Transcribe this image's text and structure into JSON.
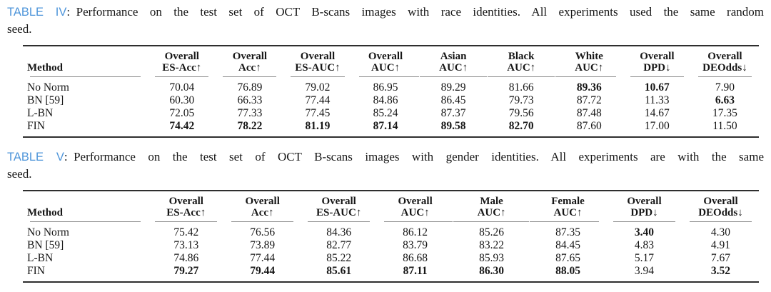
{
  "colors": {
    "caption_label_blue": "#4e95da",
    "text": "#161616",
    "heavy_rule": "#2e2e2e",
    "light_rule": "#8e8e8e",
    "background": "#ffffff"
  },
  "captions": [
    {
      "label": "TABLE IV",
      "colon": ":",
      "body": "Performance on the test set of OCT B-scans images with race identities. All experiments used the same random",
      "line2": "seed."
    },
    {
      "label": "TABLE V",
      "colon": ":",
      "body": "Performance on the test set of OCT B-scans images with gender identities. All experiments are with the same",
      "line2": "seed."
    }
  ],
  "tables": [
    {
      "name": "race-results",
      "method_col_width": "17%",
      "columns": [
        {
          "top": "",
          "bottom": "Method",
          "rule": "solo"
        },
        {
          "top": "Overall",
          "bottom": "ES-Acc↑",
          "rule": "solo"
        },
        {
          "top": "Overall",
          "bottom": "Acc↑",
          "rule": "solo"
        },
        {
          "top": "Overall",
          "bottom": "ES-AUC↑",
          "rule": "solo"
        },
        {
          "top": "Overall",
          "bottom": "AUC↑",
          "rule": "start"
        },
        {
          "top": "Asian",
          "bottom": "AUC↑",
          "rule": "mid"
        },
        {
          "top": "Black",
          "bottom": "AUC↑",
          "rule": "mid"
        },
        {
          "top": "White",
          "bottom": "AUC↑",
          "rule": "end"
        },
        {
          "top": "Overall",
          "bottom": "DPD↓",
          "rule": "solo"
        },
        {
          "top": "Overall",
          "bottom": "DEOdds↓",
          "rule": "solo"
        }
      ],
      "rows": [
        {
          "cells": [
            "No Norm",
            "70.04",
            "76.89",
            "79.02",
            "86.95",
            "89.29",
            "81.66",
            "89.36",
            "10.67",
            "7.90"
          ],
          "bold": [
            0,
            0,
            0,
            0,
            0,
            0,
            0,
            1,
            1,
            0
          ]
        },
        {
          "cells": [
            "BN [59]",
            "60.30",
            "66.33",
            "77.44",
            "84.86",
            "86.45",
            "79.73",
            "87.72",
            "11.33",
            "6.63"
          ],
          "bold": [
            0,
            0,
            0,
            0,
            0,
            0,
            0,
            0,
            0,
            1
          ]
        },
        {
          "cells": [
            "L-BN",
            "72.05",
            "77.33",
            "77.45",
            "85.24",
            "87.37",
            "79.56",
            "87.48",
            "14.67",
            "17.35"
          ],
          "bold": [
            0,
            0,
            0,
            0,
            0,
            0,
            0,
            0,
            0,
            0
          ]
        },
        {
          "cells": [
            "FIN",
            "74.42",
            "78.22",
            "81.19",
            "87.14",
            "89.58",
            "82.70",
            "87.60",
            "17.00",
            "11.50"
          ],
          "bold": [
            0,
            1,
            1,
            1,
            1,
            1,
            1,
            0,
            0,
            0
          ]
        }
      ]
    },
    {
      "name": "gender-results",
      "method_col_width": "17%",
      "columns": [
        {
          "top": "",
          "bottom": "Method",
          "rule": "solo"
        },
        {
          "top": "Overall",
          "bottom": "ES-Acc↑",
          "rule": "solo"
        },
        {
          "top": "Overall",
          "bottom": "Acc↑",
          "rule": "solo"
        },
        {
          "top": "Overall",
          "bottom": "ES-AUC↑",
          "rule": "solo"
        },
        {
          "top": "Overall",
          "bottom": "AUC↑",
          "rule": "start"
        },
        {
          "top": "Male",
          "bottom": "AUC↑",
          "rule": "mid"
        },
        {
          "top": "Female",
          "bottom": "AUC↑",
          "rule": "end"
        },
        {
          "top": "Overall",
          "bottom": "DPD↓",
          "rule": "solo"
        },
        {
          "top": "Overall",
          "bottom": "DEOdds↓",
          "rule": "solo"
        }
      ],
      "rows": [
        {
          "cells": [
            "No Norm",
            "75.42",
            "76.56",
            "84.36",
            "86.12",
            "85.26",
            "87.35",
            "3.40",
            "4.30"
          ],
          "bold": [
            0,
            0,
            0,
            0,
            0,
            0,
            0,
            1,
            0
          ]
        },
        {
          "cells": [
            "BN [59]",
            "73.13",
            "73.89",
            "82.77",
            "83.79",
            "83.22",
            "84.45",
            "4.83",
            "4.91"
          ],
          "bold": [
            0,
            0,
            0,
            0,
            0,
            0,
            0,
            0,
            0
          ]
        },
        {
          "cells": [
            "L-BN",
            "74.86",
            "77.44",
            "85.22",
            "86.68",
            "85.93",
            "87.65",
            "5.17",
            "7.67"
          ],
          "bold": [
            0,
            0,
            0,
            0,
            0,
            0,
            0,
            0,
            0
          ]
        },
        {
          "cells": [
            "FIN",
            "79.27",
            "79.44",
            "85.61",
            "87.11",
            "86.30",
            "88.05",
            "3.94",
            "3.52"
          ],
          "bold": [
            0,
            1,
            1,
            1,
            1,
            1,
            1,
            0,
            1
          ]
        }
      ]
    }
  ]
}
